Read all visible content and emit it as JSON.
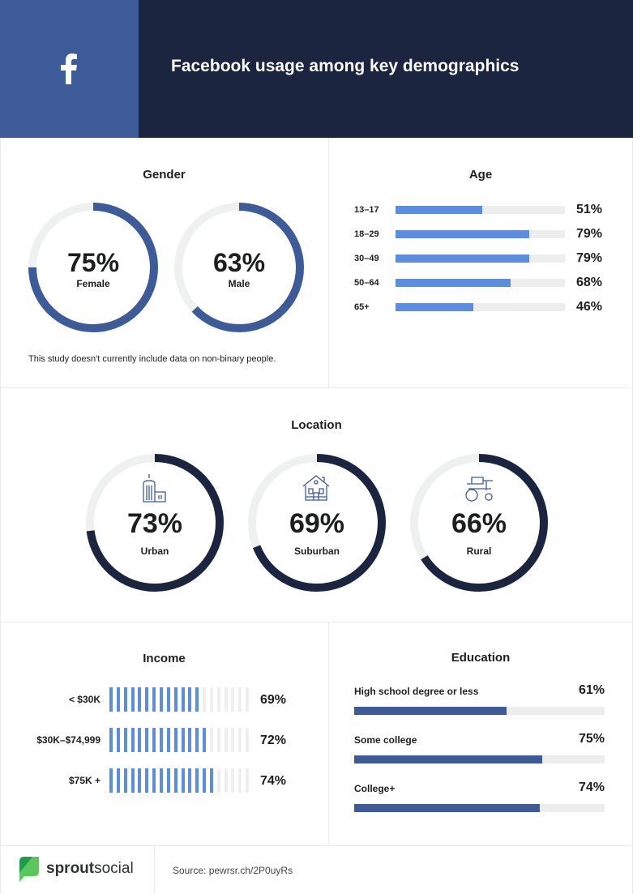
{
  "header": {
    "title": "Facebook usage among key demographics",
    "logo_icon": "facebook-f-icon"
  },
  "colors": {
    "facebook_blue": "#3d5a99",
    "navy": "#1b2540",
    "bar_blue": "#5b8de0",
    "track": "#efefef"
  },
  "gender": {
    "title": "Gender",
    "note": "This study doesn't currently include data on non-binary people.",
    "items": [
      {
        "label": "Female",
        "value": 75,
        "text": "75%"
      },
      {
        "label": "Male",
        "value": 63,
        "text": "63%"
      }
    ]
  },
  "age": {
    "title": "Age",
    "items": [
      {
        "label": "13–17",
        "value": 51,
        "text": "51%"
      },
      {
        "label": "18–29",
        "value": 79,
        "text": "79%"
      },
      {
        "label": "30–49",
        "value": 79,
        "text": "79%"
      },
      {
        "label": "50–64",
        "value": 68,
        "text": "68%"
      },
      {
        "label": "65+",
        "value": 46,
        "text": "46%"
      }
    ]
  },
  "location": {
    "title": "Location",
    "items": [
      {
        "label": "Urban",
        "value": 73,
        "text": "73%",
        "icon": "city-building-icon"
      },
      {
        "label": "Suburban",
        "value": 69,
        "text": "69%",
        "icon": "house-icon"
      },
      {
        "label": "Rural",
        "value": 66,
        "text": "66%",
        "icon": "tractor-icon"
      }
    ]
  },
  "income": {
    "title": "Income",
    "segments": 20,
    "items": [
      {
        "label": "< $30K",
        "value": 69,
        "text": "69%",
        "filled_segments": 13
      },
      {
        "label": "$30K–$74,999",
        "value": 72,
        "text": "72%",
        "filled_segments": 14
      },
      {
        "label": "$75K +",
        "value": 74,
        "text": "74%",
        "filled_segments": 15
      }
    ]
  },
  "education": {
    "title": "Education",
    "items": [
      {
        "label": "High school degree or less",
        "value": 61,
        "text": "61%"
      },
      {
        "label": "Some college",
        "value": 75,
        "text": "75%"
      },
      {
        "label": "College+",
        "value": 74,
        "text": "74%"
      }
    ]
  },
  "footer": {
    "brand_bold": "sprout",
    "brand_light": "social",
    "source": "Source: pewrsr.ch/2P0uyRs"
  }
}
